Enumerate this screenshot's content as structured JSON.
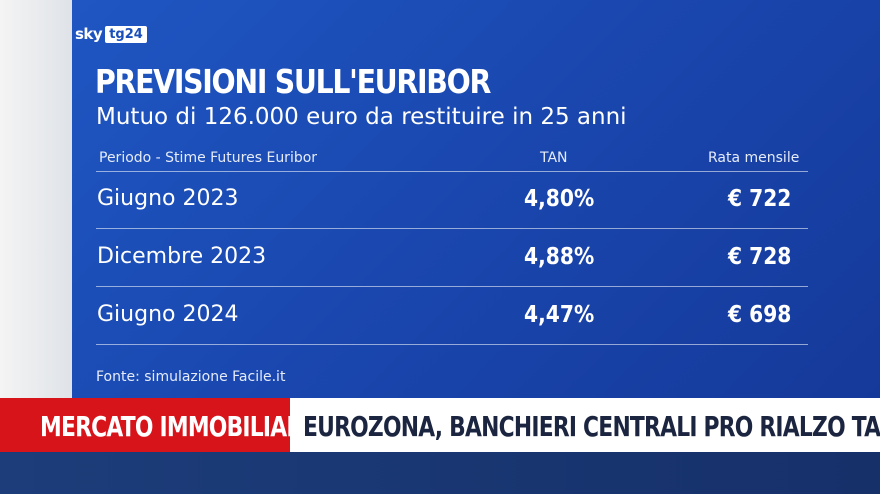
{
  "logo": {
    "brand": "sky",
    "channel": "tg24"
  },
  "graphic": {
    "title": "PREVISIONI SULL'EURIBOR",
    "subtitle": "Mutuo di 126.000 euro da restituire in 25 anni",
    "columns": {
      "period": "Periodo - Stime Futures Euribor",
      "tan": "TAN",
      "rate": "Rata mensile"
    },
    "rows": [
      {
        "period": "Giugno 2023",
        "tan": "4,80%",
        "rate": "€ 722"
      },
      {
        "period": "Dicembre 2023",
        "tan": "4,88%",
        "rate": "€ 728"
      },
      {
        "period": "Giugno 2024",
        "tan": "4,47%",
        "rate": "€ 698"
      }
    ],
    "source": "Fonte: simulazione Facile.it"
  },
  "ticker": {
    "section": "MERCATO IMMOBILIARE",
    "headline": "EUROZONA, BANCHIERI CENTRALI PRO RIALZO TASSI"
  },
  "colors": {
    "panel_blue": "#1a4fba",
    "ticker_red": "#d8141b",
    "ticker_text": "#1b2540"
  }
}
